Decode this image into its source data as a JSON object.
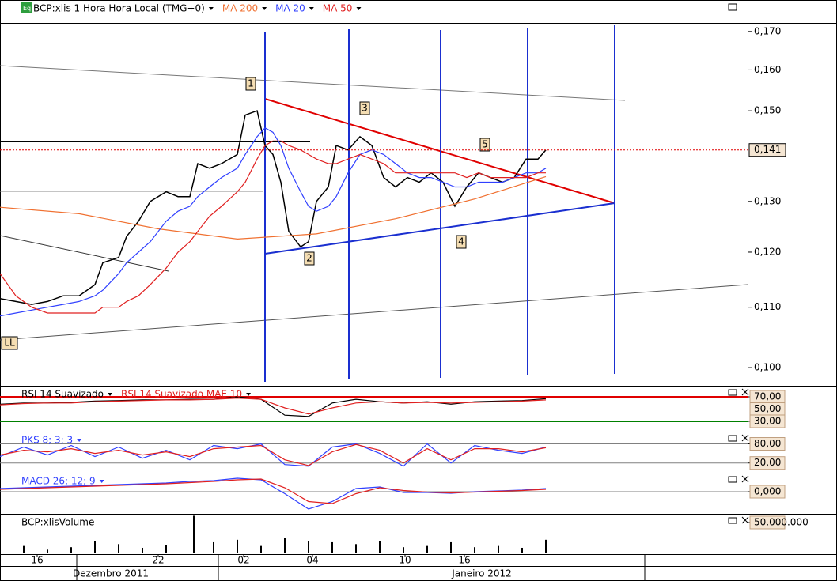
{
  "chart_data": [
    {
      "type": "line",
      "log": true,
      "xlim": [
        0,
        94.5
      ],
      "ylim": [
        0.0973,
        0.1721
      ],
      "yticks": [
        {
          "value": 0.17,
          "label": "0,170"
        },
        {
          "value": 0.16,
          "label": "0,160"
        },
        {
          "value": 0.15,
          "label": "0,150"
        },
        {
          "value": 0.13,
          "label": "0,130"
        },
        {
          "value": 0.12,
          "label": "0,120"
        },
        {
          "value": 0.11,
          "label": "0,110"
        },
        {
          "value": 0.1,
          "label": "0,100"
        }
      ],
      "last_value": {
        "value": 0.141,
        "label": "0,141"
      },
      "annotations": [
        "1",
        "2",
        "3",
        "4",
        "5",
        "LL"
      ],
      "x": [
        0,
        2,
        4,
        6,
        8,
        10,
        12,
        13,
        15,
        16,
        17.5,
        19,
        21,
        22.5,
        24,
        25,
        26.5,
        28,
        30,
        31,
        32.5,
        33.5,
        34.5,
        35.5,
        36.5,
        38,
        39,
        40,
        41.5,
        42.5,
        44,
        45.5,
        47,
        48.5,
        50,
        51.5,
        53,
        54.5,
        56,
        57.5,
        59,
        60.5,
        62,
        63.5,
        65,
        66.5,
        68,
        69
      ],
      "series": [
        {
          "name": "BCP:xlis 1 Hora Hora Local (TMG+0)",
          "color": "#000000",
          "values": [
            0.1115,
            0.111,
            0.1105,
            0.111,
            0.112,
            0.112,
            0.114,
            0.118,
            0.119,
            0.123,
            0.126,
            0.13,
            0.132,
            0.131,
            0.131,
            0.138,
            0.137,
            0.138,
            0.14,
            0.149,
            0.15,
            0.142,
            0.14,
            0.134,
            0.124,
            0.121,
            0.122,
            0.13,
            0.133,
            0.142,
            0.141,
            0.144,
            0.142,
            0.135,
            0.133,
            0.135,
            0.134,
            0.136,
            0.134,
            0.129,
            0.133,
            0.136,
            0.135,
            0.134,
            0.135,
            0.139,
            0.139,
            0.141
          ]
        },
        {
          "name": "MA 200",
          "color": "#f07030",
          "x": [
            0,
            10,
            20,
            30,
            40,
            50,
            60,
            69
          ],
          "values": [
            0.1288,
            0.1275,
            0.1245,
            0.1225,
            0.1235,
            0.1265,
            0.1305,
            0.1352
          ]
        },
        {
          "name": "MA 20",
          "color": "#3040ff",
          "values": [
            0.1085,
            0.109,
            0.1095,
            0.11,
            0.1105,
            0.111,
            0.112,
            0.113,
            0.116,
            0.118,
            0.12,
            0.122,
            0.126,
            0.128,
            0.129,
            0.131,
            0.133,
            0.135,
            0.137,
            0.14,
            0.144,
            0.146,
            0.145,
            0.142,
            0.137,
            0.132,
            0.129,
            0.128,
            0.129,
            0.131,
            0.136,
            0.14,
            0.141,
            0.14,
            0.138,
            0.136,
            0.135,
            0.135,
            0.134,
            0.133,
            0.133,
            0.134,
            0.134,
            0.134,
            0.135,
            0.136,
            0.136,
            0.137
          ]
        },
        {
          "name": "MA 50",
          "color": "#e02020",
          "values": [
            0.116,
            0.112,
            0.11,
            0.109,
            0.109,
            0.109,
            0.109,
            0.11,
            0.11,
            0.111,
            0.112,
            0.114,
            0.117,
            0.12,
            0.122,
            0.124,
            0.127,
            0.129,
            0.132,
            0.134,
            0.139,
            0.142,
            0.143,
            0.143,
            0.142,
            0.141,
            0.14,
            0.139,
            0.138,
            0.138,
            0.139,
            0.14,
            0.139,
            0.138,
            0.136,
            0.136,
            0.136,
            0.136,
            0.136,
            0.136,
            0.135,
            0.136,
            0.135,
            0.135,
            0.135,
            0.135,
            0.136,
            0.136
          ]
        }
      ]
    },
    {
      "type": "line",
      "xlim": [
        0,
        94.5
      ],
      "ylim": [
        14.5,
        85.5
      ],
      "yticks": [
        {
          "value": 70,
          "label": "70,00"
        },
        {
          "value": 50,
          "label": "50,00"
        },
        {
          "value": 30,
          "label": "30,00"
        }
      ],
      "levels": [
        {
          "value": 70,
          "color": "#e00000"
        },
        {
          "value": 30,
          "color": "#008000"
        }
      ],
      "x": [
        0,
        3,
        6,
        9,
        12,
        15,
        18,
        21,
        24,
        27,
        30,
        33,
        36,
        39,
        42,
        45,
        48,
        51,
        54,
        57,
        60,
        63,
        66,
        69
      ],
      "series": [
        {
          "name": "RSI 14 Suavizado",
          "color": "#000000",
          "values": [
            58,
            60,
            60,
            61,
            63,
            64,
            65,
            65,
            66,
            66,
            70,
            66,
            40,
            38,
            60,
            66,
            62,
            60,
            62,
            58,
            62,
            63,
            64,
            67
          ]
        },
        {
          "name": "RSI 14 Suavizado MAE 10",
          "color": "#e02020",
          "values": [
            57,
            59,
            60,
            60,
            62,
            63,
            64,
            65,
            65,
            66,
            68,
            66,
            52,
            42,
            52,
            60,
            62,
            60,
            61,
            60,
            61,
            62,
            63,
            65
          ]
        }
      ]
    },
    {
      "type": "line",
      "title": "PKS 8; 3; 3",
      "xlim": [
        0,
        94.5
      ],
      "ylim": [
        -5.5,
        113.5
      ],
      "yticks": [
        {
          "value": 80,
          "label": "80,00"
        },
        {
          "value": 20,
          "label": "20,00"
        }
      ],
      "levels": [
        {
          "value": 80,
          "color": "#808080"
        },
        {
          "value": 20,
          "color": "#808080"
        }
      ],
      "x": [
        0,
        3,
        6,
        9,
        12,
        15,
        18,
        21,
        24,
        27,
        30,
        33,
        36,
        39,
        42,
        45,
        48,
        51,
        54,
        57,
        60,
        63,
        66,
        69
      ],
      "series": [
        {
          "color": "#3040ff",
          "values": [
            40,
            70,
            45,
            75,
            40,
            70,
            35,
            60,
            30,
            75,
            65,
            80,
            15,
            10,
            70,
            80,
            50,
            10,
            80,
            20,
            75,
            60,
            50,
            70
          ]
        },
        {
          "color": "#e02020",
          "values": [
            45,
            60,
            55,
            65,
            50,
            60,
            45,
            55,
            40,
            65,
            70,
            75,
            30,
            12,
            55,
            78,
            60,
            20,
            65,
            30,
            65,
            65,
            55,
            68
          ]
        }
      ]
    },
    {
      "type": "line",
      "title": "MACD 26; 12; 9",
      "xlim": [
        0,
        94.5
      ],
      "ylim": [
        -0.0052,
        0.0044
      ],
      "yticks": [
        {
          "value": 0,
          "label": "0,000"
        }
      ],
      "levels": [
        {
          "value": 0,
          "color": "#808080"
        }
      ],
      "x": [
        0,
        3,
        6,
        9,
        12,
        15,
        18,
        21,
        24,
        27,
        30,
        33,
        36,
        39,
        42,
        45,
        48,
        51,
        54,
        57,
        60,
        63,
        66,
        69
      ],
      "series": [
        {
          "color": "#3040ff",
          "values": [
            0.0008,
            0.001,
            0.0012,
            0.0014,
            0.0016,
            0.0018,
            0.002,
            0.0022,
            0.0026,
            0.0028,
            0.0034,
            0.003,
            -0.0005,
            -0.0044,
            -0.0025,
            0.0008,
            0.0012,
            -0.0002,
            -0.0002,
            -0.0004,
            0,
            0.0002,
            0.0004,
            0.0008
          ]
        },
        {
          "color": "#e02020",
          "values": [
            0.0006,
            0.0008,
            0.001,
            0.0012,
            0.0014,
            0.0016,
            0.0018,
            0.002,
            0.0023,
            0.0026,
            0.003,
            0.0032,
            0.001,
            -0.0025,
            -0.003,
            -0.0005,
            0.001,
            0.0003,
            -0.0001,
            -0.0003,
            -0.0001,
            0.0001,
            0.0003,
            0.0006
          ]
        }
      ]
    },
    {
      "type": "bar",
      "title": "BCP:xlisVolume",
      "color": "#000000",
      "xlim": [
        0,
        94.5
      ],
      "ylim": [
        0,
        61500000
      ],
      "yticks": [
        {
          "value": 50000000,
          "label": "50.000.000"
        }
      ],
      "xticks": [
        {
          "value": 4.7,
          "label": "16"
        },
        {
          "value": 20,
          "label": "22"
        },
        {
          "value": 30.8,
          "label": "02"
        },
        {
          "value": 39.5,
          "label": "04"
        },
        {
          "value": 51.2,
          "label": "10"
        },
        {
          "value": 58.7,
          "label": "16"
        }
      ],
      "x_groups": [
        "Dezembro 2011",
        "Janeiro 2012"
      ],
      "x": [
        0,
        3,
        6,
        9,
        12,
        15,
        18,
        21,
        24.5,
        27,
        30,
        33,
        36,
        39,
        42,
        45,
        48,
        51,
        54,
        57,
        60,
        63,
        66,
        69
      ],
      "values": [
        8000000,
        12000000,
        6000000,
        10000000,
        20000000,
        15000000,
        9000000,
        14000000,
        61000000,
        18000000,
        22000000,
        12000000,
        25000000,
        20000000,
        18000000,
        15000000,
        20000000,
        10000000,
        12000000,
        18000000,
        10000000,
        12000000,
        9000000,
        22000000
      ]
    }
  ]
}
